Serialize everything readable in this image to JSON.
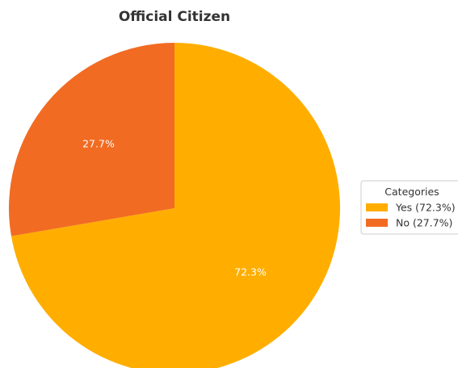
{
  "chart_data": {
    "type": "pie",
    "title": "Official Citizen",
    "categories": [
      "Yes",
      "No"
    ],
    "values": [
      72.3,
      27.7
    ],
    "slice_labels": [
      "72.3%",
      "27.7%"
    ],
    "colors": [
      "#FFAE00",
      "#F26B22"
    ],
    "legend": {
      "title": "Categories",
      "entries": [
        "Yes (72.3%)",
        "No (27.7%)"
      ],
      "placement": "right"
    },
    "start_angle_direction": "clockwise from top"
  }
}
